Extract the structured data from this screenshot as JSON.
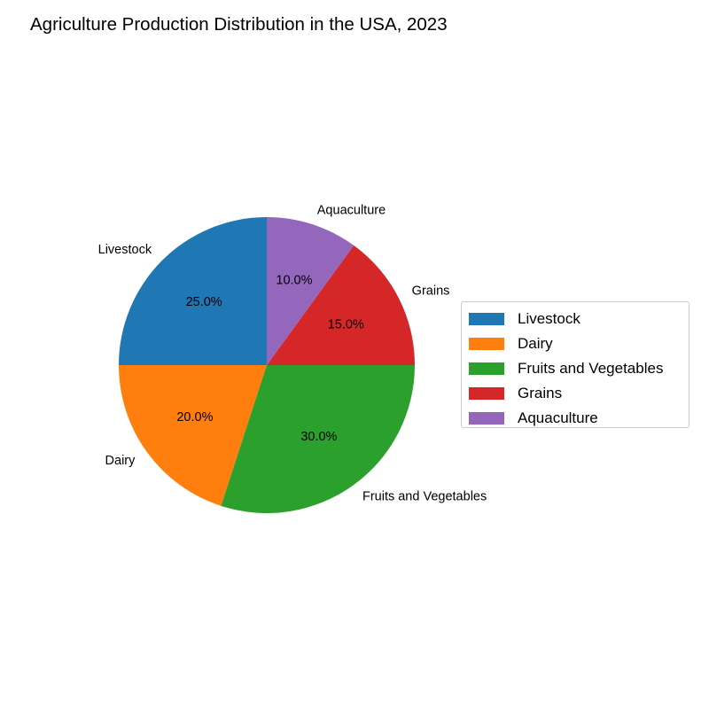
{
  "chart_data": {
    "type": "pie",
    "title": "Agriculture Production Distribution in the USA, 2023",
    "slices": [
      {
        "label": "Livestock",
        "value": 25.0,
        "pct_label": "25.0%",
        "color": "#1f77b4"
      },
      {
        "label": "Dairy",
        "value": 20.0,
        "pct_label": "20.0%",
        "color": "#ff7f0e"
      },
      {
        "label": "Fruits and Vegetables",
        "value": 30.0,
        "pct_label": "30.0%",
        "color": "#2ca02c"
      },
      {
        "label": "Grains",
        "value": 15.0,
        "pct_label": "15.0%",
        "color": "#d62728"
      },
      {
        "label": "Aquaculture",
        "value": 10.0,
        "pct_label": "10.0%",
        "color": "#9467bd"
      }
    ],
    "legend": {
      "placement": "right",
      "items": [
        "Livestock",
        "Dairy",
        "Fruits and Vegetables",
        "Grains",
        "Aquaculture"
      ]
    }
  }
}
